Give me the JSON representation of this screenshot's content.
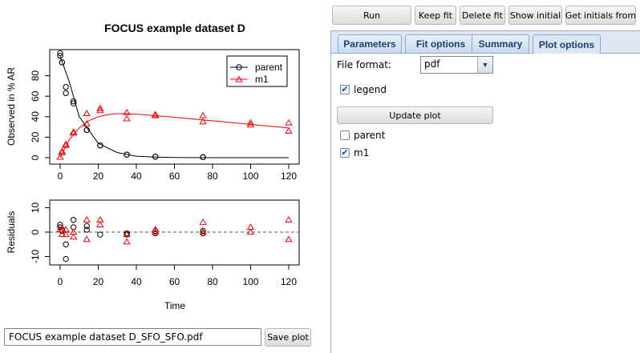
{
  "plot": {
    "title": "FOCUS example dataset D",
    "ylabel_top": "Observed in % AR",
    "ylabel_bottom": "Residuals",
    "xlabel": "Time",
    "legend": [
      "parent",
      "m1"
    ],
    "x_ticks": [
      "0",
      "20",
      "40",
      "60",
      "80",
      "100",
      "120"
    ],
    "y_ticks_top": [
      "0",
      "20",
      "40",
      "60",
      "80"
    ],
    "y_ticks_bottom": [
      "-10",
      "0",
      "10"
    ],
    "colors": {
      "parent": "#000000",
      "m1": "#ff0000",
      "zero_line": "#555555"
    }
  },
  "chart_data": [
    {
      "type": "scatter",
      "panel": "observed",
      "title": "FOCUS example dataset D",
      "xlabel": "Time",
      "ylabel": "Observed in % AR",
      "xlim": [
        0,
        120
      ],
      "ylim": [
        0,
        100
      ],
      "legend_position": "top-right",
      "series": [
        {
          "name": "parent",
          "marker": "circle",
          "x": [
            0,
            0,
            1,
            1,
            3,
            3,
            7,
            7,
            14,
            14,
            21,
            21,
            35,
            35,
            50,
            50,
            75,
            75,
            100,
            100,
            120,
            120
          ],
          "y": [
            99.5,
            102,
            93,
            93,
            69,
            63,
            53,
            55,
            27,
            27,
            12,
            12,
            3,
            3,
            1,
            1,
            0.5,
            0.5,
            null,
            null,
            null,
            null
          ]
        },
        {
          "name": "m1",
          "marker": "triangle",
          "x": [
            0,
            1,
            1,
            3,
            3,
            7,
            7,
            14,
            14,
            21,
            21,
            35,
            35,
            50,
            50,
            75,
            75,
            100,
            100,
            120,
            120
          ],
          "y": [
            0.5,
            5,
            6,
            12,
            13,
            24,
            25,
            33,
            43,
            46,
            48,
            38,
            44,
            41,
            42,
            35,
            41,
            32,
            34,
            34,
            26
          ]
        },
        {
          "name": "parent fit",
          "style": "line",
          "x": [
            0,
            5,
            10,
            15,
            20,
            30,
            40,
            50,
            60,
            80,
            100,
            120
          ],
          "y": [
            99,
            73,
            40,
            27,
            14,
            5,
            1.5,
            0.6,
            0.2,
            0,
            0,
            0
          ]
        },
        {
          "name": "m1 fit",
          "style": "line",
          "x": [
            0,
            5,
            10,
            15,
            20,
            25,
            30,
            35,
            40,
            50,
            60,
            80,
            100,
            120
          ],
          "y": [
            0,
            18,
            29,
            36,
            40,
            42,
            43,
            43,
            42.5,
            41,
            39.5,
            36,
            32.5,
            29
          ]
        }
      ]
    },
    {
      "type": "scatter",
      "panel": "residuals",
      "xlabel": "Time",
      "ylabel": "Residuals",
      "xlim": [
        0,
        120
      ],
      "ylim": [
        -12,
        12
      ],
      "series": [
        {
          "name": "parent",
          "marker": "circle",
          "x": [
            0,
            0,
            1,
            1,
            3,
            3,
            7,
            7,
            14,
            14,
            21,
            35,
            35,
            50,
            50,
            75,
            75
          ],
          "y": [
            2,
            3,
            1,
            0.5,
            -5,
            -11,
            2,
            5,
            1,
            2.5,
            -1,
            -0.5,
            -1,
            0.5,
            -0.5,
            0.5,
            -0.5
          ]
        },
        {
          "name": "m1",
          "marker": "triangle",
          "x": [
            0,
            1,
            1,
            3,
            3,
            7,
            7,
            14,
            14,
            21,
            21,
            35,
            35,
            50,
            50,
            75,
            75,
            100,
            100,
            120,
            120
          ],
          "y": [
            1,
            -1,
            1,
            1,
            -1,
            -2,
            0,
            -3,
            5,
            3,
            5,
            -4,
            -1,
            0,
            1,
            0,
            4,
            0,
            2,
            5,
            -3
          ]
        }
      ]
    }
  ],
  "file_field": {
    "value": "FOCUS example dataset D_SFO_SFO.pdf"
  },
  "buttons": {
    "save_plot": "Save plot",
    "run": "Run",
    "keep_fit": "Keep fit",
    "delete_fit": "Delete fit",
    "show_initial": "Show initial",
    "get_initials": "Get initials from"
  },
  "tabs": [
    "Parameters",
    "Fit options",
    "Summary",
    "Plot options"
  ],
  "active_tab": "Plot options",
  "plot_options": {
    "file_format_label": "File format:",
    "file_format_value": "pdf",
    "legend_label": "legend",
    "legend_checked": true,
    "update_plot": "Update plot",
    "observed": [
      {
        "label": "parent",
        "checked": false
      },
      {
        "label": "m1",
        "checked": true
      }
    ]
  }
}
